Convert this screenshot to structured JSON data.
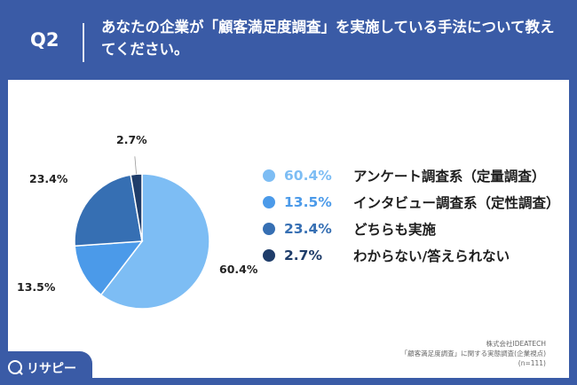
{
  "header": {
    "q_label": "Q2",
    "title": "あなたの企業が「顧客満足度調査」を実施している手法について教えてください。"
  },
  "chart_data": {
    "type": "pie",
    "categories": [
      "アンケート調査系（定量調査）",
      "インタビュー調査系（定性調査）",
      "どちらも実施",
      "わからない/答えられない"
    ],
    "values": [
      60.4,
      13.5,
      23.4,
      2.7
    ],
    "labels": [
      "60.4%",
      "13.5%",
      "23.4%",
      "2.7%"
    ],
    "colors": [
      "#7dbdf4",
      "#4b9ae9",
      "#366fb3",
      "#1f3d6a"
    ],
    "legend_text_colors": [
      "#7dbdf4",
      "#4b9ae9",
      "#366fb3",
      "#1f3d6a"
    ],
    "legend_position": "right"
  },
  "footer": {
    "line1": "株式会社IDEATECH",
    "line2": "「顧客満足度調査」に関する実態調査(企業視点)",
    "line3": "(n=111)"
  },
  "brand": {
    "name": "リサピー"
  }
}
